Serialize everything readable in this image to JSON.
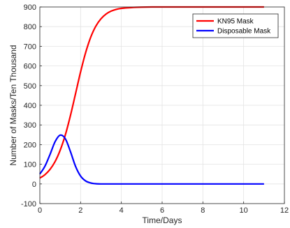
{
  "chart_data": {
    "type": "line",
    "title": "",
    "xlabel": "Time/Days",
    "ylabel": "Number of Masks/Ten Thousand",
    "xlim": [
      0,
      12
    ],
    "ylim": [
      -100,
      900
    ],
    "xticks": [
      0,
      2,
      4,
      6,
      8,
      10,
      12
    ],
    "yticks": [
      -100,
      0,
      100,
      200,
      300,
      400,
      500,
      600,
      700,
      800,
      900
    ],
    "grid": true,
    "legend_position": "top-right",
    "series": [
      {
        "name": "KN95 Mask",
        "color": "#ff0000",
        "x": [
          0,
          0.25,
          0.5,
          0.75,
          1,
          1.25,
          1.5,
          1.75,
          2,
          2.25,
          2.5,
          2.75,
          3,
          3.25,
          3.5,
          3.75,
          4,
          4.5,
          5,
          5.5,
          6,
          7,
          8,
          9,
          10,
          11
        ],
        "y": [
          30,
          47,
          74,
          114,
          172,
          249,
          347,
          458,
          570,
          669,
          747,
          803,
          840,
          864,
          879,
          888,
          893,
          897,
          899,
          900,
          900,
          900,
          900,
          900,
          900,
          900
        ]
      },
      {
        "name": "Disposable Mask",
        "color": "#0000ff",
        "x": [
          0,
          0.25,
          0.5,
          0.75,
          1,
          1.25,
          1.5,
          1.75,
          2,
          2.25,
          2.5,
          2.75,
          3,
          3.5,
          4,
          5,
          6,
          7,
          8,
          9,
          10,
          11
        ],
        "y": [
          50,
          90,
          150,
          215,
          248,
          230,
          165,
          90,
          40,
          15,
          5,
          1,
          0,
          0,
          0,
          0,
          0,
          0,
          0,
          0,
          0,
          0
        ]
      }
    ]
  }
}
